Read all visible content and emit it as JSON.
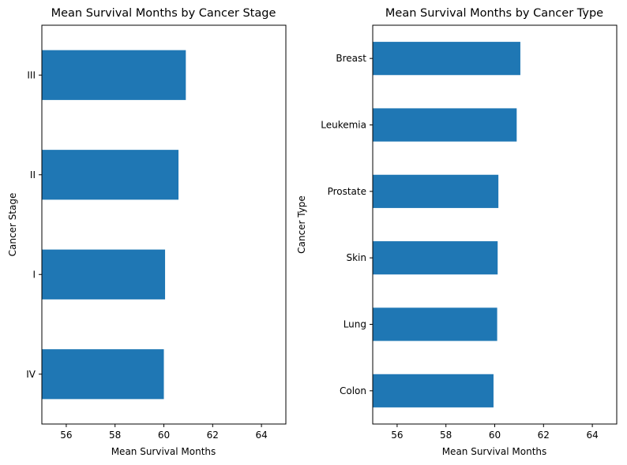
{
  "chart_data": [
    {
      "type": "bar",
      "orientation": "horizontal",
      "title": "Mean Survival Months by Cancer Stage",
      "xlabel": "Mean Survival Months",
      "ylabel": "Cancer Stage",
      "categories": [
        "IV",
        "I",
        "II",
        "III"
      ],
      "values": [
        60.0,
        60.05,
        60.6,
        60.9
      ],
      "xlim": [
        55,
        65
      ],
      "xticks": [
        56,
        58,
        60,
        62,
        64
      ],
      "grid": false,
      "color": "#1f77b4"
    },
    {
      "type": "bar",
      "orientation": "horizontal",
      "title": "Mean Survival Months by Cancer Type",
      "xlabel": "Mean Survival Months",
      "ylabel": "Cancer Type",
      "categories": [
        "Colon",
        "Lung",
        "Skin",
        "Prostate",
        "Leukemia",
        "Breast"
      ],
      "values": [
        59.95,
        60.1,
        60.12,
        60.15,
        60.9,
        61.05
      ],
      "xlim": [
        55,
        65
      ],
      "xticks": [
        56,
        58,
        60,
        62,
        64
      ],
      "grid": false,
      "color": "#1f77b4"
    }
  ]
}
